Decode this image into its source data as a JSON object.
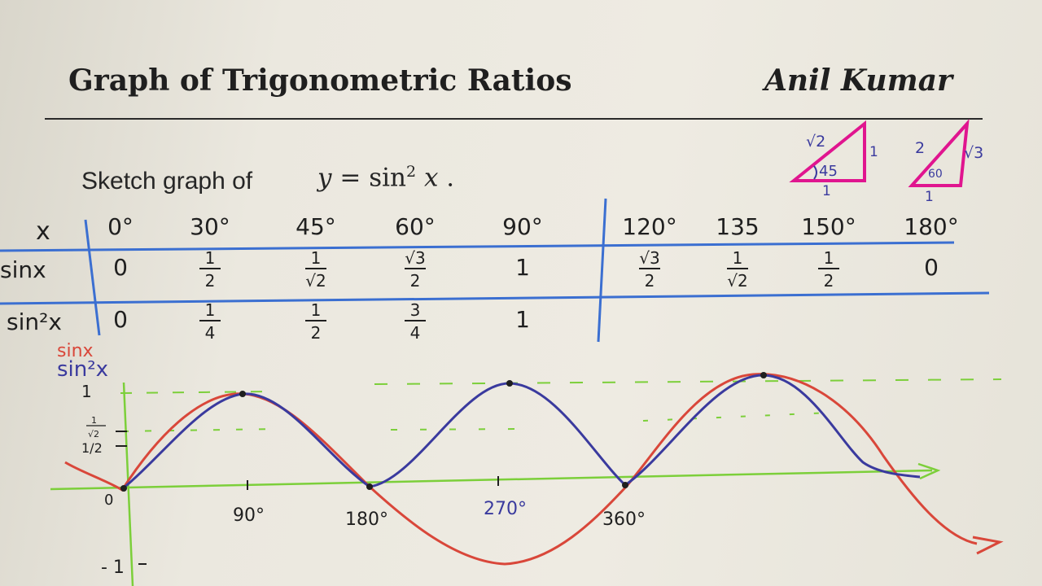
{
  "header": {
    "title": "Graph of Trigonometric Ratios",
    "author": "Anil Kumar"
  },
  "prompt": {
    "text": "Sketch graph of",
    "y": "y",
    "eq": " = sin",
    "exp": "2",
    "x": " x",
    "dot": " ."
  },
  "triangles": [
    {
      "hyp": "√2",
      "side_right": "1",
      "side_bottom": "1",
      "angle": "45"
    },
    {
      "hyp": "2",
      "side_right": "√3",
      "side_bottom": "1",
      "angle": "60"
    }
  ],
  "table": {
    "row_labels": [
      "x",
      "sinx",
      "sin²x"
    ],
    "x": [
      "0°",
      "30°",
      "45°",
      "60°",
      "90°",
      "120°",
      "135",
      "150°",
      "180°"
    ],
    "sinx": [
      {
        "n": "0"
      },
      {
        "n": "1",
        "d": "2"
      },
      {
        "n": "1",
        "d": "√2"
      },
      {
        "n": "√3",
        "d": "2"
      },
      {
        "n": "1"
      },
      {
        "n": "√3",
        "d": "2"
      },
      {
        "n": "1",
        "d": "√2"
      },
      {
        "n": "1",
        "d": "2"
      },
      {
        "n": "0"
      }
    ],
    "sin2x": [
      {
        "n": "0"
      },
      {
        "n": "1",
        "d": "4"
      },
      {
        "n": "1",
        "d": "2"
      },
      {
        "n": "3",
        "d": "4"
      },
      {
        "n": "1"
      }
    ]
  },
  "graph": {
    "legend": {
      "sinx": "sinx",
      "sin2x": "sin²x"
    },
    "y_ticks": {
      "one": "1",
      "inv_sqrt2_n": "1",
      "inv_sqrt2_d": "√2",
      "half": "1/2",
      "minus_one": "- 1"
    },
    "x_ticks": [
      "0",
      "90°",
      "180°",
      "270°",
      "360°"
    ],
    "colors": {
      "sinx": "#d9473a",
      "sin2x": "#3a3a9e",
      "axis": "#7ccf3a",
      "dashed": "#7ccf3a",
      "table": "#3b6fd1",
      "triangle": "#e0158f",
      "ink": "#1f1f1f"
    }
  }
}
